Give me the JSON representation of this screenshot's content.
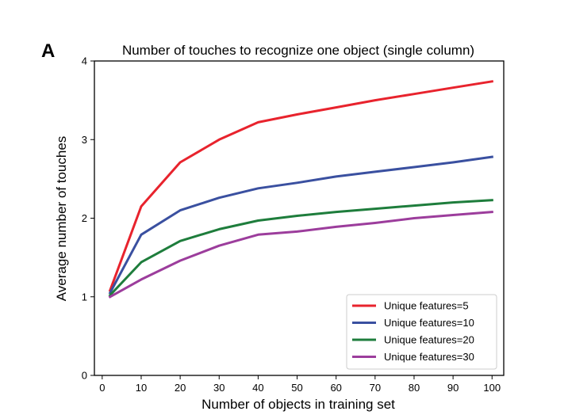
{
  "panel_letter": "A",
  "chart_data": {
    "type": "line",
    "title": "Number of touches to recognize one object (single column)",
    "xlabel": "Number of objects in training set",
    "ylabel": "Average number of touches",
    "xlim": [
      -2,
      103
    ],
    "ylim": [
      0,
      4
    ],
    "xticks": [
      0,
      10,
      20,
      30,
      40,
      50,
      60,
      70,
      80,
      90,
      100
    ],
    "yticks": [
      0,
      1,
      2,
      3,
      4
    ],
    "grid": false,
    "legend_position": "bottom-right",
    "x": [
      2,
      10,
      20,
      30,
      40,
      50,
      60,
      70,
      80,
      90,
      100
    ],
    "series": [
      {
        "name": "Unique features=5",
        "color": "#e8232d",
        "values": [
          1.08,
          2.15,
          2.71,
          3.0,
          3.22,
          3.32,
          3.41,
          3.5,
          3.58,
          3.66,
          3.74
        ]
      },
      {
        "name": "Unique features=10",
        "color": "#3a50a0",
        "values": [
          1.05,
          1.79,
          2.1,
          2.26,
          2.38,
          2.45,
          2.53,
          2.59,
          2.65,
          2.71,
          2.78
        ]
      },
      {
        "name": "Unique features=20",
        "color": "#1e7d3c",
        "values": [
          1.02,
          1.44,
          1.71,
          1.86,
          1.97,
          2.03,
          2.08,
          2.12,
          2.16,
          2.2,
          2.23
        ]
      },
      {
        "name": "Unique features=30",
        "color": "#9c3d9c",
        "values": [
          1.0,
          1.22,
          1.46,
          1.65,
          1.79,
          1.83,
          1.89,
          1.94,
          2.0,
          2.04,
          2.08
        ]
      }
    ]
  }
}
